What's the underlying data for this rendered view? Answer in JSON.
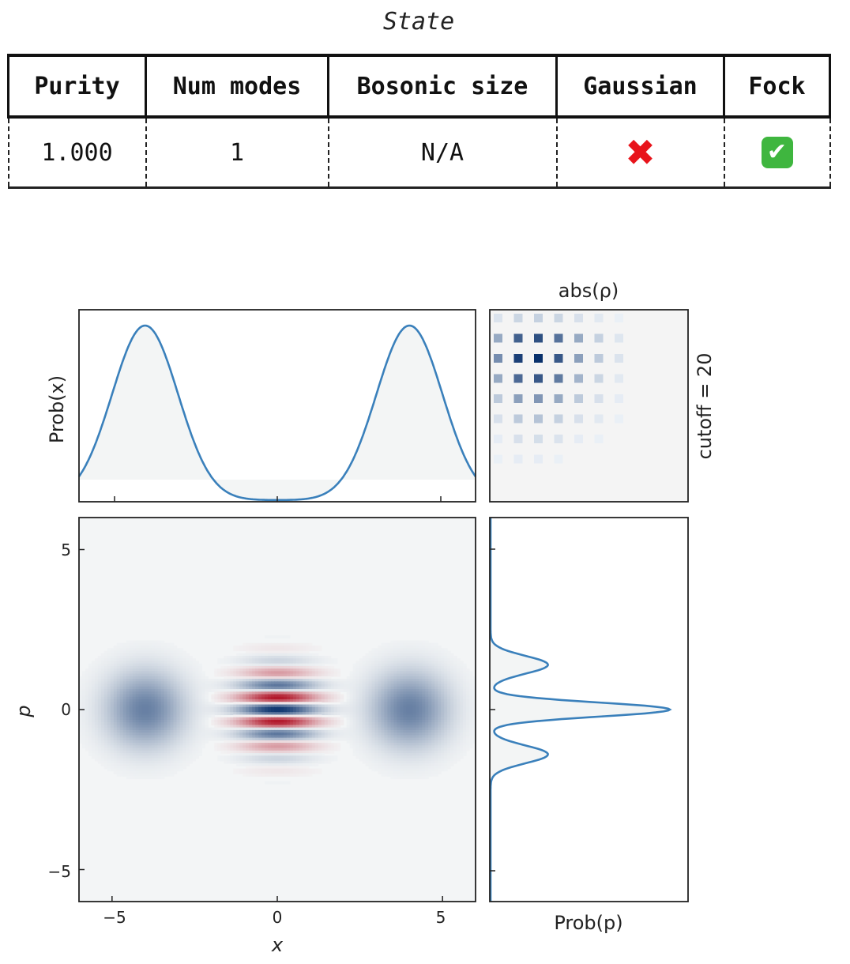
{
  "state_title": "State",
  "table": {
    "headers": [
      "Purity",
      "Num modes",
      "Bosonic size",
      "Gaussian",
      "Fock"
    ],
    "row": {
      "purity": "1.000",
      "num_modes": "1",
      "bosonic_size": "N/A",
      "gaussian_symbol": "✖",
      "fock_symbol": "✔"
    }
  },
  "colors": {
    "curve": "#3a80bb",
    "fill": "#f3f5f5",
    "blue_max": "#08306b",
    "red_max": "#b2182b"
  },
  "chart_data": [
    {
      "type": "line",
      "ylabel": "Prob(x)",
      "xlim": [
        -6,
        6
      ],
      "xticks": [
        -5,
        0,
        5
      ],
      "description_of_curve": "cat state position marginal, two gaussian peaks",
      "peaks_x": [
        -4.0,
        4.0
      ],
      "peak_width_sigma": 1.0
    },
    {
      "type": "heatmap",
      "title": "abs(ρ)",
      "side_label": "cutoff = 20",
      "cutoff": 20,
      "visible_matrix_rows": [
        [
          0.05,
          0.1,
          0.12,
          0.1,
          0.06,
          0.03,
          0.01
        ],
        [
          0.3,
          0.7,
          0.8,
          0.6,
          0.3,
          0.12,
          0.04
        ],
        [
          0.45,
          0.9,
          1.0,
          0.75,
          0.35,
          0.15,
          0.05
        ],
        [
          0.3,
          0.65,
          0.75,
          0.55,
          0.25,
          0.1,
          0.03
        ],
        [
          0.15,
          0.35,
          0.4,
          0.3,
          0.15,
          0.06,
          0.02
        ],
        [
          0.06,
          0.15,
          0.18,
          0.12,
          0.06,
          0.03,
          0.01
        ],
        [
          0.02,
          0.06,
          0.07,
          0.05,
          0.02,
          0.01,
          0.0
        ],
        [
          0.01,
          0.02,
          0.02,
          0.01,
          0.0,
          0.0,
          0.0
        ]
      ]
    },
    {
      "type": "heatmap",
      "xlabel": "x",
      "ylabel": "p",
      "xlim": [
        -6,
        6
      ],
      "ylim": [
        -6,
        6
      ],
      "xtick_labels": [
        "−5",
        "0",
        "5"
      ],
      "ytick_labels": [
        "5",
        "0",
        "−5"
      ],
      "xticks": [
        -5,
        0,
        5
      ],
      "yticks": [
        5,
        0,
        -5
      ],
      "alpha": 4.0,
      "description_of_function": "Wigner function of even cat state"
    },
    {
      "type": "line",
      "xlabel": "Prob(p)",
      "ylim": [
        -6,
        6
      ],
      "peaks_p": [
        -1.4,
        0,
        1.4
      ],
      "relative_heights": [
        0.32,
        1.0,
        0.32
      ]
    }
  ]
}
